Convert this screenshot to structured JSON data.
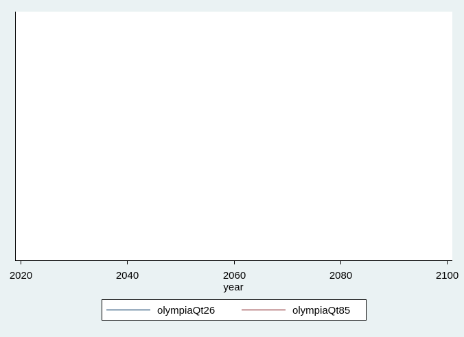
{
  "chart_data": {
    "type": "line",
    "title": "",
    "xlabel": "year",
    "ylabel": "",
    "xlim": [
      2019,
      2101
    ],
    "x_ticks": [
      2020,
      2040,
      2060,
      2080,
      2100
    ],
    "y_ticks": [],
    "grid": false,
    "legend_position": "bottom",
    "series": [
      {
        "name": "olympiaQt26",
        "color": "#1a476f",
        "x": [],
        "y": []
      },
      {
        "name": "olympiaQt85",
        "color": "#90353b",
        "x": [],
        "y": []
      }
    ]
  },
  "colors": {
    "page_background": "#eaf2f3",
    "plot_background": "#ffffff",
    "axis": "#000000"
  }
}
